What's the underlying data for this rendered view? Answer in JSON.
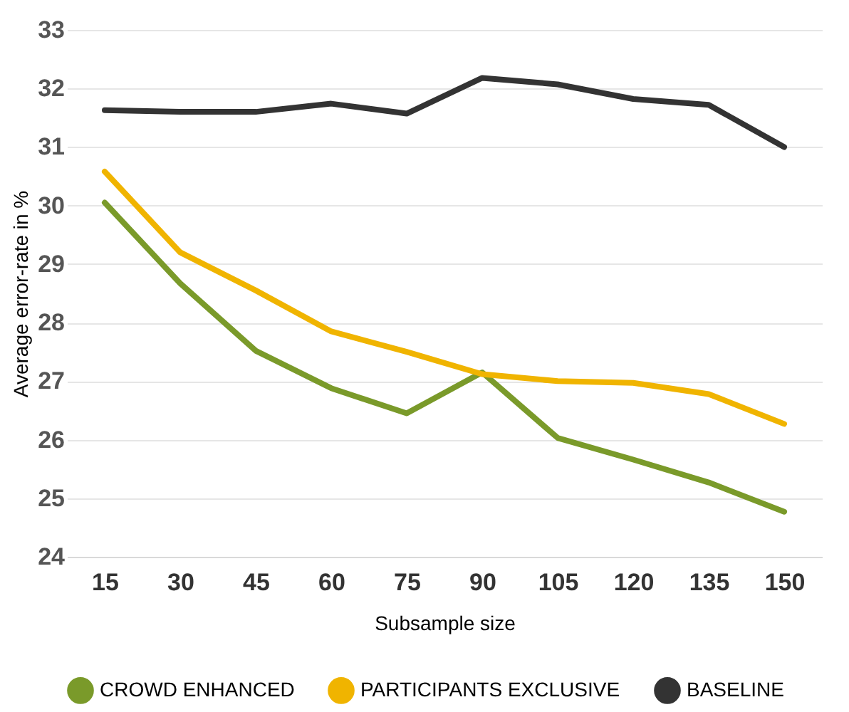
{
  "chart_data": {
    "type": "line",
    "xlabel": "Subsample size",
    "ylabel": "Average error-rate in %",
    "categories": [
      "15",
      "30",
      "45",
      "60",
      "75",
      "90",
      "105",
      "120",
      "135",
      "150"
    ],
    "series": [
      {
        "name": "CROWD ENHANCED",
        "color": "#7a9a2a",
        "values": [
          30.05,
          28.67,
          27.52,
          26.88,
          26.45,
          27.15,
          26.03,
          25.66,
          25.27,
          24.77
        ]
      },
      {
        "name": "PARTICIPANTS EXCLUSIVE",
        "color": "#f0b400",
        "values": [
          30.58,
          29.2,
          28.55,
          27.85,
          27.5,
          27.12,
          27.0,
          26.97,
          26.78,
          26.27
        ]
      },
      {
        "name": "BASELINE",
        "color": "#333333",
        "values": [
          31.63,
          31.6,
          31.6,
          31.74,
          31.57,
          32.18,
          32.07,
          31.82,
          31.72,
          31.0
        ]
      }
    ],
    "ylim": [
      24,
      33
    ],
    "yticks": [
      24,
      25,
      26,
      27,
      28,
      29,
      30,
      31,
      32,
      33
    ],
    "grid": "y",
    "legend": "bottom",
    "marker": "none",
    "line_style": "solid"
  }
}
